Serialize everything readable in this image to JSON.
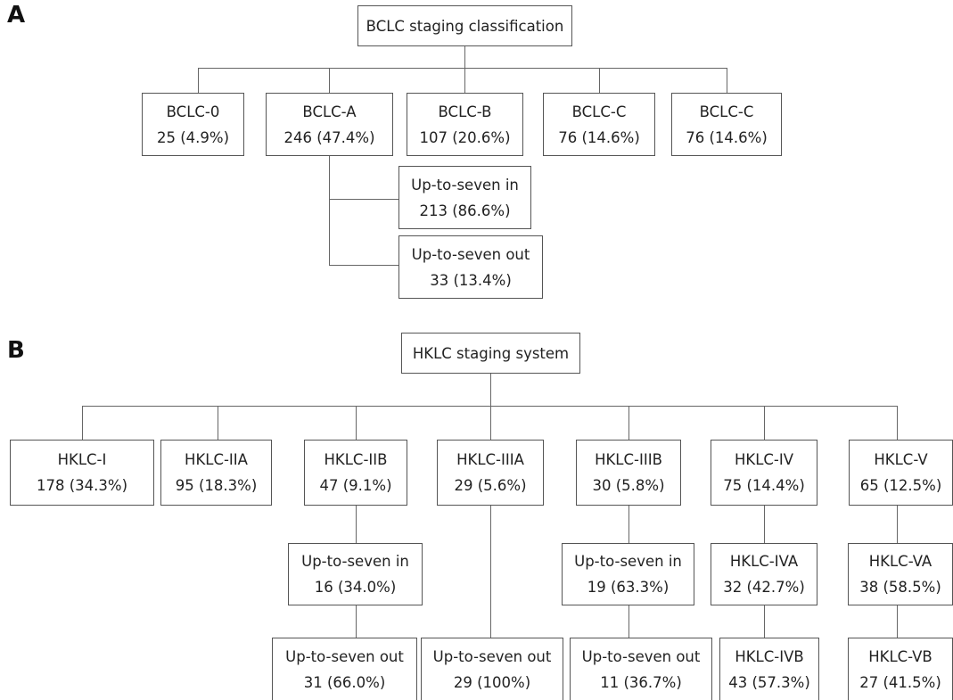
{
  "panel_a": {
    "letter": "A",
    "root": {
      "label": "BCLC staging classification"
    },
    "stages": [
      {
        "name": "BCLC-0",
        "value": "25 (4.9%)"
      },
      {
        "name": "BCLC-A",
        "value": "246 (47.4%)"
      },
      {
        "name": "BCLC-B",
        "value": "107 (20.6%)"
      },
      {
        "name": "BCLC-C",
        "value": "76 (14.6%)"
      },
      {
        "name": "BCLC-C",
        "value": "76 (14.6%)"
      }
    ],
    "sub": [
      {
        "name": "Up-to-seven in",
        "value": "213 (86.6%)"
      },
      {
        "name": "Up-to-seven out",
        "value": "33 (13.4%)"
      }
    ]
  },
  "panel_b": {
    "letter": "B",
    "root": {
      "label": "HKLC staging system"
    },
    "stages": [
      {
        "name": "HKLC-I",
        "value": "178 (34.3%)"
      },
      {
        "name": "HKLC-IIA",
        "value": "95 (18.3%)"
      },
      {
        "name": "HKLC-IIB",
        "value": "47 (9.1%)"
      },
      {
        "name": "HKLC-IIIA",
        "value": "29 (5.6%)"
      },
      {
        "name": "HKLC-IIIB",
        "value": "30 (5.8%)"
      },
      {
        "name": "HKLC-IV",
        "value": "75 (14.4%)"
      },
      {
        "name": "HKLC-V",
        "value": "65 (12.5%)"
      }
    ],
    "level2": [
      {
        "name": "Up-to-seven in",
        "value": "16 (34.0%)"
      },
      {
        "name": "Up-to-seven in",
        "value": "19 (63.3%)"
      },
      {
        "name": "HKLC-IVA",
        "value": "32 (42.7%)"
      },
      {
        "name": "HKLC-VA",
        "value": "38 (58.5%)"
      }
    ],
    "level3": [
      {
        "name": "Up-to-seven out",
        "value": "31 (66.0%)"
      },
      {
        "name": "Up-to-seven out",
        "value": "29 (100%)"
      },
      {
        "name": "Up-to-seven out",
        "value": "11 (36.7%)"
      },
      {
        "name": "HKLC-IVB",
        "value": "43 (57.3%)"
      },
      {
        "name": "HKLC-VB",
        "value": "27 (41.5%)"
      }
    ]
  }
}
